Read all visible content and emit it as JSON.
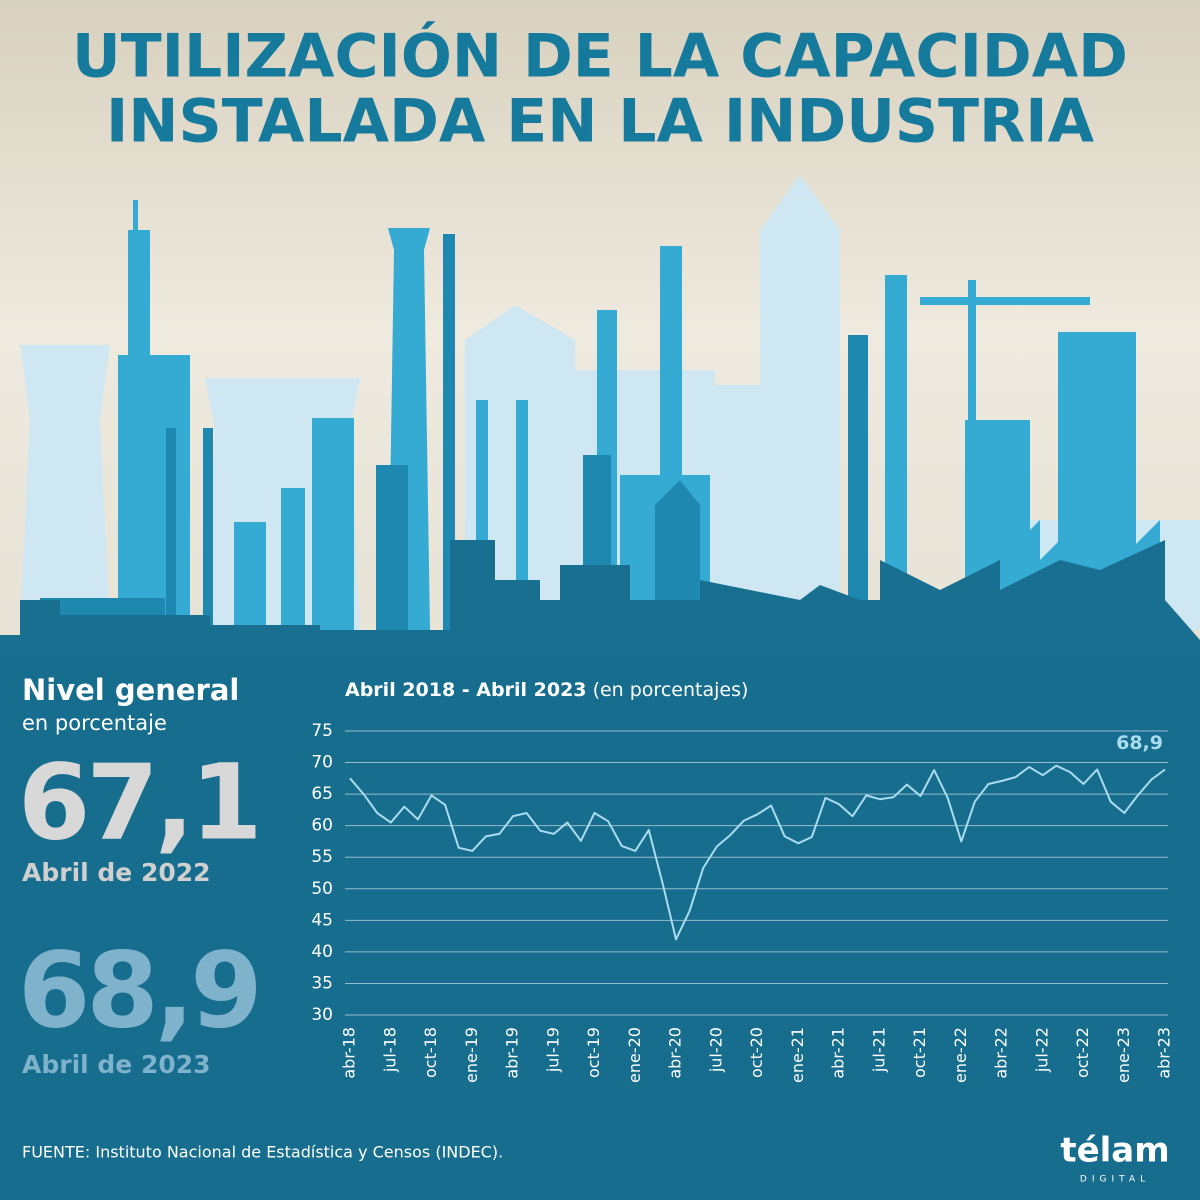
{
  "header": {
    "title_lines": [
      "UTILIZACIÓN DE LA CAPACIDAD",
      "INSTALADA EN LA INDUSTRIA"
    ]
  },
  "summary": {
    "title": "Nivel general",
    "subtitle": "en porcentaje",
    "items": [
      {
        "value": "67,1",
        "period": "Abril de 2022"
      },
      {
        "value": "68,9",
        "period": "Abril de 2023"
      }
    ]
  },
  "chart_data": {
    "type": "line",
    "title": "Abril 2018 - Abril 2023",
    "subtitle": "(en porcentajes)",
    "categories": [
      "abr-18",
      null,
      null,
      "jul-18",
      null,
      null,
      "oct-18",
      null,
      null,
      "ene-19",
      null,
      null,
      "abr-19",
      null,
      null,
      "jul-19",
      null,
      null,
      "oct-19",
      null,
      null,
      "ene-20",
      null,
      null,
      "abr-20",
      null,
      null,
      "jul-20",
      null,
      null,
      "oct-20",
      null,
      null,
      "ene-21",
      null,
      null,
      "abr-21",
      null,
      null,
      "jul-21",
      null,
      null,
      "oct-21",
      null,
      null,
      "ene-22",
      null,
      null,
      "abr-22",
      null,
      null,
      "jul-22",
      null,
      null,
      "oct-22",
      null,
      null,
      "ene-23",
      null,
      null,
      "abr-23"
    ],
    "values": [
      67.5,
      65,
      62,
      60.5,
      63,
      61,
      64.8,
      63.3,
      56.5,
      56,
      58.3,
      58.7,
      61.5,
      62,
      59.2,
      58.7,
      60.5,
      57.6,
      62,
      60.7,
      56.8,
      56,
      59.3,
      51,
      42,
      46.5,
      53.3,
      56.7,
      58.5,
      60.8,
      61.8,
      63.2,
      58.3,
      57.2,
      58.2,
      64.4,
      63.4,
      61.5,
      64.8,
      64.2,
      64.5,
      66.5,
      64.7,
      68.8,
      64.4,
      57.5,
      63.8,
      66.6,
      67.1,
      67.7,
      69.3,
      68,
      69.5,
      68.5,
      66.6,
      68.9,
      63.8,
      62,
      64.8,
      67.3,
      68.9
    ],
    "value_labels": [
      null,
      null,
      null,
      null,
      null,
      null,
      null,
      null,
      null,
      null,
      null,
      null,
      null,
      null,
      null,
      null,
      null,
      null,
      null,
      null,
      null,
      null,
      null,
      null,
      null,
      null,
      null,
      null,
      null,
      null,
      null,
      null,
      null,
      null,
      null,
      null,
      null,
      null,
      null,
      null,
      null,
      null,
      null,
      null,
      null,
      null,
      null,
      null,
      null,
      null,
      null,
      null,
      null,
      null,
      null,
      null,
      null,
      null,
      null,
      null,
      "68,9"
    ],
    "color": "#a9dcef",
    "ylim": [
      30,
      75
    ],
    "yticks": [
      30,
      35,
      40,
      45,
      50,
      55,
      60,
      65,
      70,
      75
    ],
    "grid": true
  },
  "footer": {
    "source": "FUENTE: Instituto Nacional de Estadística y Censos (INDEC).",
    "logo": "télam",
    "logo_sub": "DIGITAL"
  }
}
